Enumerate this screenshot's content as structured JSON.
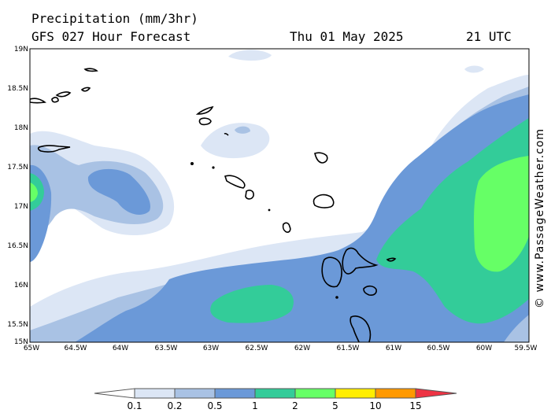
{
  "header": {
    "title": "Precipitation (mm/3hr)",
    "model": "GFS 027 Hour Forecast",
    "date": "Thu 01 May 2025",
    "time": "21 UTC"
  },
  "credit": "© www.PassageWeather.com",
  "axes": {
    "lat_labels": [
      "19N",
      "18.5N",
      "18N",
      "17.5N",
      "17N",
      "16.5N",
      "16N",
      "15.5N",
      "15N"
    ],
    "lon_labels": [
      "65W",
      "64.5W",
      "64W",
      "63.5W",
      "63W",
      "62.5W",
      "62W",
      "61.5W",
      "61W",
      "60.5W",
      "60W",
      "59.5W"
    ]
  },
  "colorbar": {
    "labels": [
      "0.1",
      "0.2",
      "0.5",
      "1",
      "2",
      "5",
      "10",
      "15"
    ],
    "colors": [
      "#ffffff",
      "#dce6f5",
      "#a9c2e4",
      "#6b99d8",
      "#33cc99",
      "#66ff66",
      "#ffee00",
      "#ff9900",
      "#ee3344"
    ]
  },
  "legend_colors": {
    "c01": "#dce6f5",
    "c02": "#a9c2e4",
    "c05": "#6b99d8",
    "c1": "#33cc99",
    "c2": "#66ff66"
  }
}
